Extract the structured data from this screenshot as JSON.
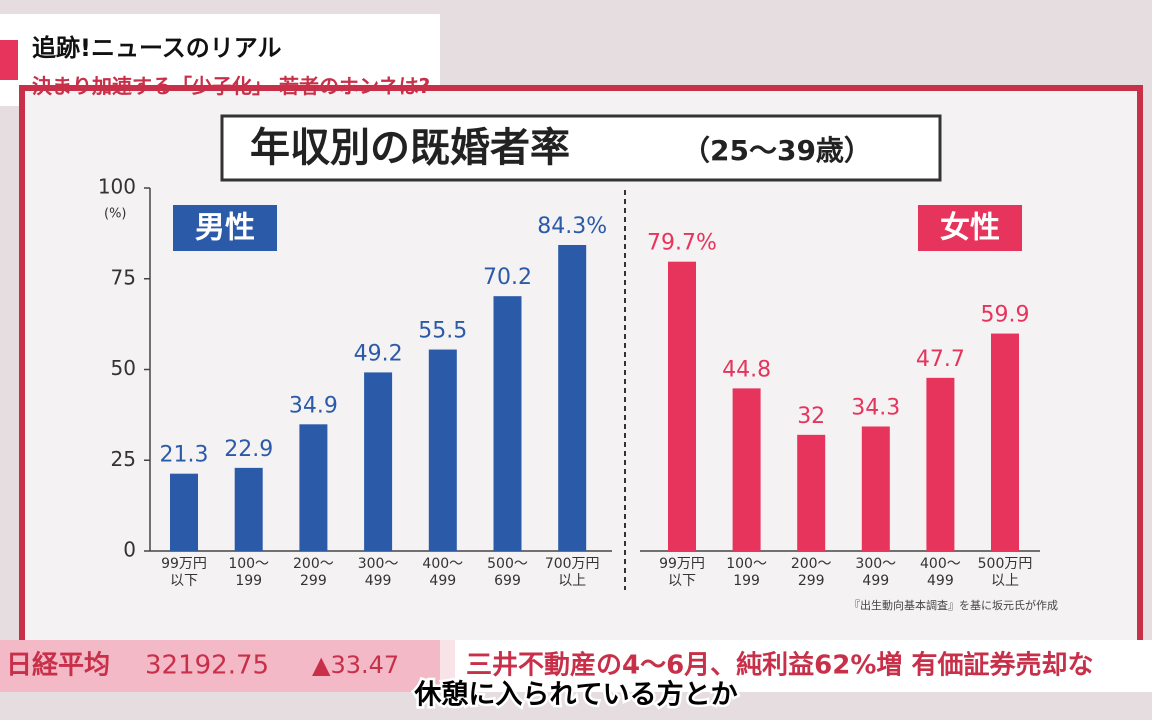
{
  "header": {
    "program": "追跡!ニュースのリアル",
    "topic": "決まり加速する「少子化」 若者のホンネは?"
  },
  "chart_data": {
    "type": "bar",
    "title": "年収別の既婚者率",
    "subtitle": "（25～39歳）",
    "y_label": "(%)",
    "ylim": [
      0,
      100
    ],
    "yticks": [
      0,
      25,
      50,
      75,
      100
    ],
    "groups": [
      {
        "name": "男性",
        "color": "#2b5ba8",
        "categories": [
          "99万円\n以下",
          "100〜\n199",
          "200〜\n299",
          "300〜\n499",
          "400〜\n499",
          "500〜\n699",
          "700万円\n以上"
        ],
        "values": [
          21.3,
          22.9,
          34.9,
          49.2,
          55.5,
          70.2,
          84.3
        ],
        "value_labels": [
          "21.3",
          "22.9",
          "34.9",
          "49.2",
          "55.5",
          "70.2",
          "84.3%"
        ]
      },
      {
        "name": "女性",
        "color": "#e6345c",
        "categories": [
          "99万円\n以下",
          "100〜\n199",
          "200〜\n299",
          "300〜\n499",
          "400〜\n499",
          "500万円\n以上"
        ],
        "values": [
          79.7,
          44.8,
          32,
          34.3,
          47.7,
          59.9
        ],
        "value_labels": [
          "79.7%",
          "44.8",
          "32",
          "34.3",
          "47.7",
          "59.9"
        ]
      }
    ],
    "note": "『出生動向基本調査』を基に坂元氏が作成"
  },
  "ticker": {
    "label": "日経平均",
    "price": "32192.75",
    "change": "▲33.47",
    "news": "三井不動産の4〜6月、純利益62%増 有価証券売却な"
  },
  "caption": "休憩に入られている方とか"
}
